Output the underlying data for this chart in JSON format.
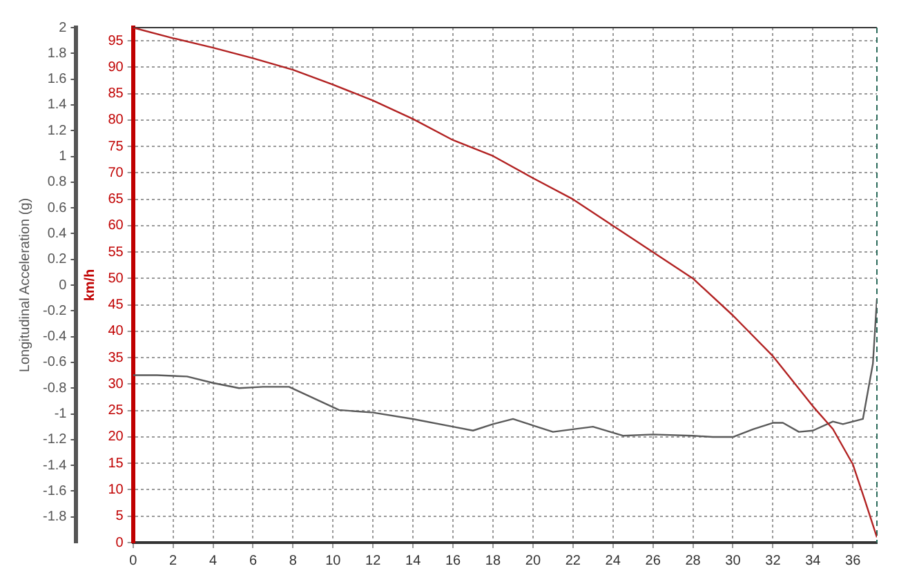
{
  "chart_data": {
    "type": "line",
    "ylabel": "Longitudinal Acceleration (g)",
    "y2label": "km/h",
    "grid": true,
    "legend": false,
    "marker": "none",
    "line_style": "solid",
    "xlim": [
      0,
      37.2
    ],
    "xticks": [
      0,
      2,
      4,
      6,
      8,
      10,
      12,
      14,
      16,
      18,
      20,
      22,
      24,
      26,
      28,
      30,
      32,
      34,
      36
    ],
    "ylim": [
      -2,
      2
    ],
    "yticks": [
      -1.8,
      -1.6,
      -1.4,
      -1.2,
      -1,
      -0.8,
      -0.6,
      -0.4,
      -0.2,
      0,
      0.2,
      0.4,
      0.6,
      0.8,
      1,
      1.2,
      1.4,
      1.6,
      1.8,
      2
    ],
    "y2lim": [
      0,
      97.5
    ],
    "y2ticks": [
      0,
      5,
      10,
      15,
      20,
      25,
      30,
      35,
      40,
      45,
      50,
      55,
      60,
      65,
      70,
      75,
      80,
      85,
      90,
      95
    ],
    "series": [
      {
        "color": "#b22222",
        "axis": "y2",
        "x": [
          0,
          2,
          4,
          6,
          8,
          10,
          12,
          14,
          16,
          18,
          20,
          22,
          24,
          26,
          28,
          30,
          32,
          34,
          35,
          36,
          36.6,
          37.2
        ],
        "values": [
          97.5,
          95.5,
          93.7,
          91.7,
          89.5,
          86.7,
          83.7,
          80.2,
          76.2,
          73.2,
          69,
          65,
          60,
          55,
          50,
          43,
          35.3,
          25.8,
          21.5,
          14.8,
          8,
          1
        ]
      },
      {
        "color": "#5a5a5a",
        "axis": "y",
        "x": [
          0,
          1.2,
          2.7,
          4,
          5.3,
          6.5,
          7.8,
          10.3,
          12,
          14,
          16,
          17,
          18,
          19,
          20,
          21,
          22,
          23,
          24.5,
          26,
          28,
          29,
          30,
          31,
          32,
          32.5,
          33.3,
          34,
          35,
          35.5,
          36.5,
          37,
          37.2
        ],
        "values": [
          -0.7,
          -0.7,
          -0.71,
          -0.76,
          -0.8,
          -0.79,
          -0.79,
          -0.97,
          -0.99,
          -1.04,
          -1.1,
          -1.13,
          -1.08,
          -1.04,
          -1.09,
          -1.14,
          -1.12,
          -1.1,
          -1.17,
          -1.16,
          -1.17,
          -1.18,
          -1.18,
          -1.12,
          -1.07,
          -1.07,
          -1.14,
          -1.13,
          -1.06,
          -1.08,
          -1.04,
          -0.61,
          -0.11
        ]
      }
    ]
  }
}
